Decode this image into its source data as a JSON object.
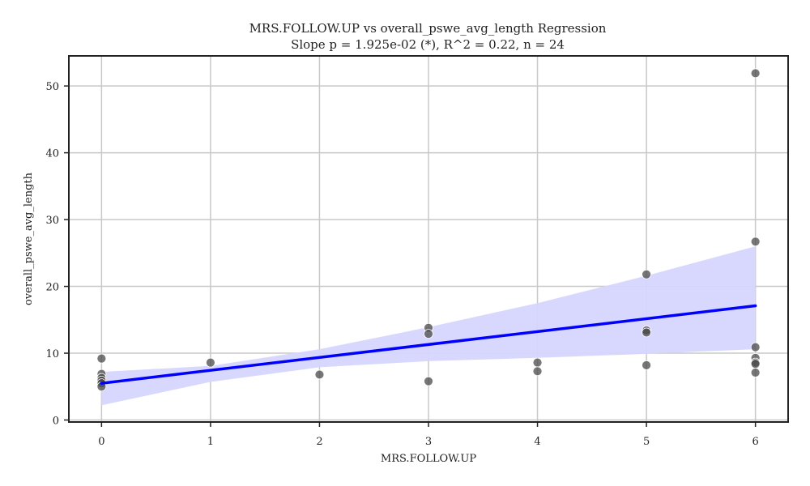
{
  "chart_data": {
    "type": "scatter",
    "title": "MRS.FOLLOW.UP vs overall_pswe_avg_length Regression",
    "subtitle": "Slope p = 1.925e-02 (*), R^2 = 0.22, n = 24",
    "xlabel": "MRS.FOLLOW.UP",
    "ylabel": "overall_pswe_avg_length",
    "xlim": [
      -0.3,
      6.3
    ],
    "ylim": [
      -0.3,
      54.5
    ],
    "xticks": [
      0,
      1,
      2,
      3,
      4,
      5,
      6
    ],
    "yticks": [
      0,
      10,
      20,
      30,
      40,
      50
    ],
    "grid": true,
    "legend": "none",
    "points": [
      {
        "x": 0,
        "y": 9.2
      },
      {
        "x": 0,
        "y": 6.9
      },
      {
        "x": 0,
        "y": 6.3
      },
      {
        "x": 0,
        "y": 5.9
      },
      {
        "x": 0,
        "y": 5.5
      },
      {
        "x": 0,
        "y": 5.0
      },
      {
        "x": 1,
        "y": 8.6
      },
      {
        "x": 2,
        "y": 6.8
      },
      {
        "x": 3,
        "y": 13.8
      },
      {
        "x": 3,
        "y": 12.9
      },
      {
        "x": 3,
        "y": 5.8
      },
      {
        "x": 4,
        "y": 8.6
      },
      {
        "x": 4,
        "y": 7.3
      },
      {
        "x": 5,
        "y": 21.8
      },
      {
        "x": 5,
        "y": 13.4
      },
      {
        "x": 5,
        "y": 13.1
      },
      {
        "x": 5,
        "y": 8.2
      },
      {
        "x": 6,
        "y": 51.9
      },
      {
        "x": 6,
        "y": 26.7
      },
      {
        "x": 6,
        "y": 10.9
      },
      {
        "x": 6,
        "y": 9.3
      },
      {
        "x": 6,
        "y": 8.6
      },
      {
        "x": 6,
        "y": 8.4
      },
      {
        "x": 6,
        "y": 7.1
      }
    ],
    "regression_line": {
      "x": [
        0,
        6
      ],
      "y": [
        5.5,
        17.1
      ]
    },
    "confidence_band": {
      "x": [
        0,
        1,
        2,
        3,
        4,
        5,
        6
      ],
      "upper": [
        7.2,
        8.1,
        10.6,
        13.9,
        17.5,
        21.6,
        26.0
      ],
      "lower": [
        2.2,
        5.7,
        7.9,
        8.8,
        9.3,
        9.9,
        10.6
      ]
    },
    "colors": {
      "points": "#4a4a4a",
      "line": "#0000ff",
      "band": "#d6d6ff",
      "grid": "#c8c8c8",
      "axis": "#222222"
    }
  }
}
